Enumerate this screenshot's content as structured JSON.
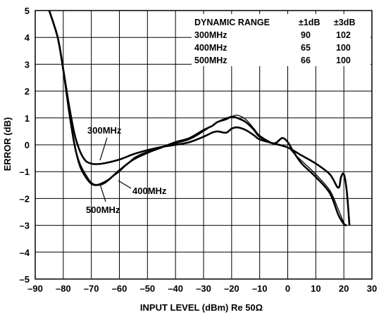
{
  "chart_data": {
    "type": "line",
    "xlabel": "INPUT LEVEL (dBm) Re 50Ω",
    "ylabel": "ERROR (dB)",
    "xlim": [
      -90,
      30
    ],
    "ylim": [
      -5,
      5
    ],
    "grid": true,
    "x_ticks": [
      "–90",
      "–80",
      "–70",
      "–60",
      "–50",
      "–40",
      "–30",
      "–20",
      "–10",
      "0",
      "10",
      "20",
      "30"
    ],
    "y_ticks": [
      "5",
      "4",
      "3",
      "2",
      "1",
      "0",
      "–1",
      "–2",
      "–3",
      "–4",
      "–5"
    ],
    "table": {
      "headers": [
        "DYNAMIC RANGE",
        "±1dB",
        "±3dB"
      ],
      "rows": [
        [
          "300MHz",
          "90",
          "102"
        ],
        [
          "400MHz",
          "65",
          "100"
        ],
        [
          "500MHz",
          "66",
          "100"
        ]
      ]
    },
    "series": [
      {
        "name": "300MHz",
        "x": [
          -85,
          -82,
          -80,
          -78,
          -76,
          -74,
          -72,
          -70,
          -68,
          -65,
          -60,
          -55,
          -50,
          -45,
          -40,
          -35,
          -30,
          -27,
          -25,
          -22,
          -20,
          -18,
          -15,
          -12,
          -10,
          -5,
          0,
          5,
          10,
          15,
          18,
          19,
          20,
          21,
          22
        ],
        "y": [
          5.0,
          4.0,
          2.8,
          1.5,
          0.4,
          -0.25,
          -0.6,
          -0.7,
          -0.72,
          -0.68,
          -0.55,
          -0.35,
          -0.2,
          -0.08,
          0.0,
          0.1,
          0.3,
          0.45,
          0.5,
          0.45,
          0.6,
          0.65,
          0.55,
          0.35,
          0.2,
          0.05,
          -0.1,
          -0.4,
          -0.7,
          -1.1,
          -1.6,
          -1.2,
          -1.1,
          -1.7,
          -3.0
        ]
      },
      {
        "name": "400MHz",
        "x": [
          -85,
          -82,
          -80,
          -78,
          -76,
          -74,
          -72,
          -70,
          -68,
          -65,
          -60,
          -55,
          -50,
          -45,
          -40,
          -35,
          -30,
          -25,
          -22,
          -20,
          -18,
          -15,
          -12,
          -10,
          -5,
          0,
          2,
          5,
          10,
          15,
          18,
          20,
          21
        ],
        "y": [
          5.0,
          4.0,
          2.8,
          1.2,
          0.0,
          -0.7,
          -1.1,
          -1.4,
          -1.48,
          -1.35,
          -1.0,
          -0.5,
          -0.25,
          -0.1,
          0.05,
          0.2,
          0.5,
          0.85,
          1.0,
          1.05,
          1.1,
          0.95,
          0.6,
          0.35,
          0.05,
          -0.1,
          -0.3,
          -0.6,
          -1.1,
          -1.7,
          -2.4,
          -2.9,
          -3.0
        ]
      },
      {
        "name": "500MHz",
        "x": [
          -85,
          -82,
          -80,
          -78,
          -76,
          -74,
          -72,
          -70,
          -68,
          -65,
          -60,
          -55,
          -50,
          -45,
          -40,
          -35,
          -30,
          -27,
          -25,
          -22,
          -20,
          -18,
          -15,
          -12,
          -10,
          -5,
          -2,
          0,
          2,
          5,
          10,
          15,
          18,
          20,
          21
        ],
        "y": [
          5.0,
          4.0,
          2.8,
          1.3,
          0.0,
          -0.8,
          -1.2,
          -1.45,
          -1.5,
          -1.4,
          -0.95,
          -0.55,
          -0.3,
          -0.1,
          0.1,
          0.25,
          0.55,
          0.7,
          0.85,
          0.95,
          1.05,
          1.0,
          0.85,
          0.55,
          0.3,
          0.05,
          0.25,
          0.1,
          -0.25,
          -0.7,
          -1.2,
          -1.8,
          -2.6,
          -2.95,
          -3.0
        ]
      }
    ],
    "annotations": [
      {
        "text": "300MHz",
        "for": "300MHz"
      },
      {
        "text": "400MHz",
        "for": "400MHz"
      },
      {
        "text": "500MHz",
        "for": "500MHz"
      }
    ]
  }
}
